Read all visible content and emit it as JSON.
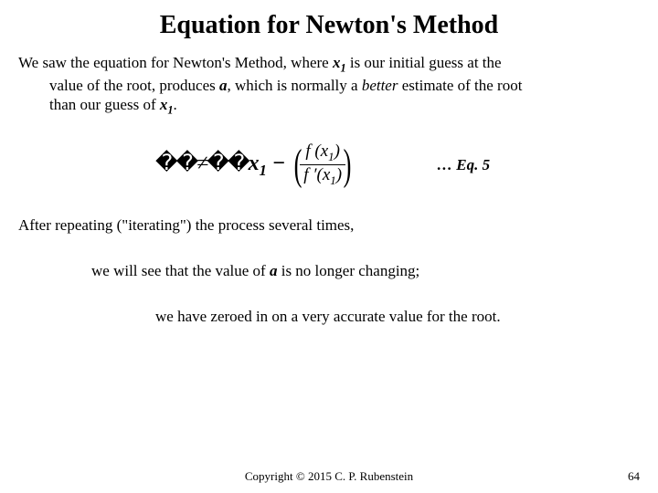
{
  "title": "Equation for Newton's Method",
  "para1_lead": "We saw the equation for Newton's Method, where ",
  "para1_x1": "x",
  "para1_x1sub": "1",
  "para1_mid1": " is our initial guess at the ",
  "para1_indent1": "value of the root, produces ",
  "para1_a": "a",
  "para1_mid2": ", which is normally a ",
  "para1_better": "better",
  "para1_mid3": " estimate of the root ",
  "para1_indent2a": "than our guess of ",
  "para1_x1b": "x",
  "para1_x1bsub": "1",
  "para1_end": ".",
  "eq_boxes": "��≠��",
  "eq_x": "x",
  "eq_xsub": "1",
  "eq_minus": " − ",
  "frac_num_f": "f ",
  "frac_num_open": "(",
  "frac_num_x": "x",
  "frac_num_xsub": "1",
  "frac_num_close": ")",
  "frac_den_f": "f ′",
  "frac_den_open": "(",
  "frac_den_x": "x",
  "frac_den_xsub": "1",
  "frac_den_close": ")",
  "eq_label": "… Eq. 5",
  "line2": "After repeating (\"iterating\") the process several times,",
  "line3a": "we will see that the value of ",
  "line3_a": "a",
  "line3b": " is no longer changing;",
  "line4": "we have zeroed in on a very accurate value for the root.",
  "copyright": "Copyright © 2015 C. P. Rubenstein",
  "pagenum": "64",
  "colors": {
    "text": "#000000",
    "bg": "#ffffff"
  }
}
